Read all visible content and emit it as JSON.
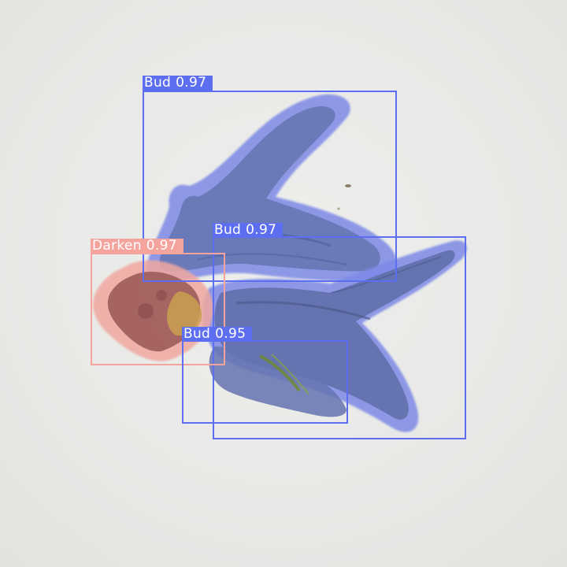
{
  "colors": {
    "background": "#e9eae7",
    "bud": "#5d6ef0",
    "darken": "#f4a39d",
    "label_text": "#ffffff"
  },
  "detections": [
    {
      "class": "Bud",
      "score": "0.97"
    },
    {
      "class": "Bud",
      "score": "0.97"
    },
    {
      "class": "Darken",
      "score": "0.97"
    },
    {
      "class": "Bud",
      "score": "0.95"
    }
  ]
}
